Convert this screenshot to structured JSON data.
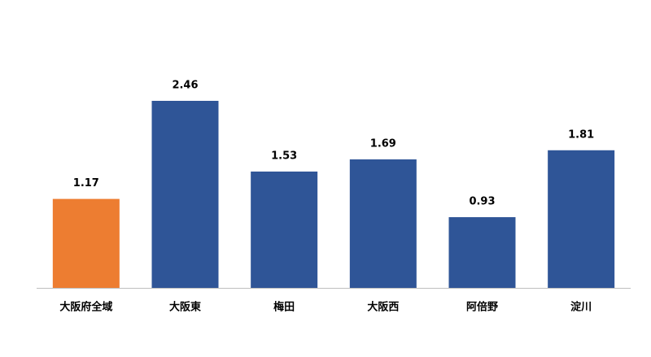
{
  "chart_data": {
    "type": "bar",
    "categories": [
      "大阪府全域",
      "大阪東",
      "梅田",
      "大阪西",
      "阿倍野",
      "淀川"
    ],
    "values": [
      1.17,
      2.46,
      1.53,
      1.69,
      0.93,
      1.81
    ],
    "colors": [
      "#ED7D31",
      "#2F5597",
      "#2F5597",
      "#2F5597",
      "#2F5597",
      "#2F5597"
    ]
  }
}
